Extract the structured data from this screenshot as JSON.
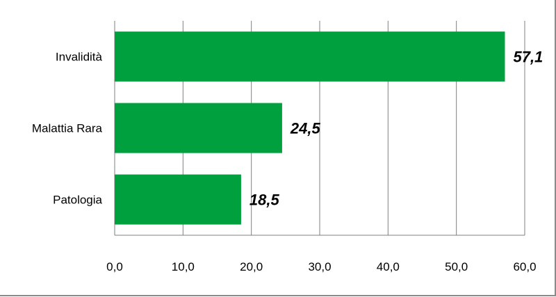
{
  "chart_data": {
    "type": "bar",
    "orientation": "horizontal",
    "categories": [
      "Invalidità",
      "Malattia Rara",
      "Patologia"
    ],
    "values": [
      57.1,
      24.5,
      18.5
    ],
    "data_labels": [
      "57,1",
      "24,5",
      "18,5"
    ],
    "xlim": [
      0,
      60
    ],
    "xticks": [
      0,
      10,
      20,
      30,
      40,
      50,
      60
    ],
    "xtick_labels": [
      "0,0",
      "10,0",
      "20,0",
      "30,0",
      "40,0",
      "50,0",
      "60,0"
    ],
    "grid": "vertical",
    "legend": "none",
    "bar_color": "#00a03e",
    "title": "",
    "xlabel": "",
    "ylabel": ""
  }
}
